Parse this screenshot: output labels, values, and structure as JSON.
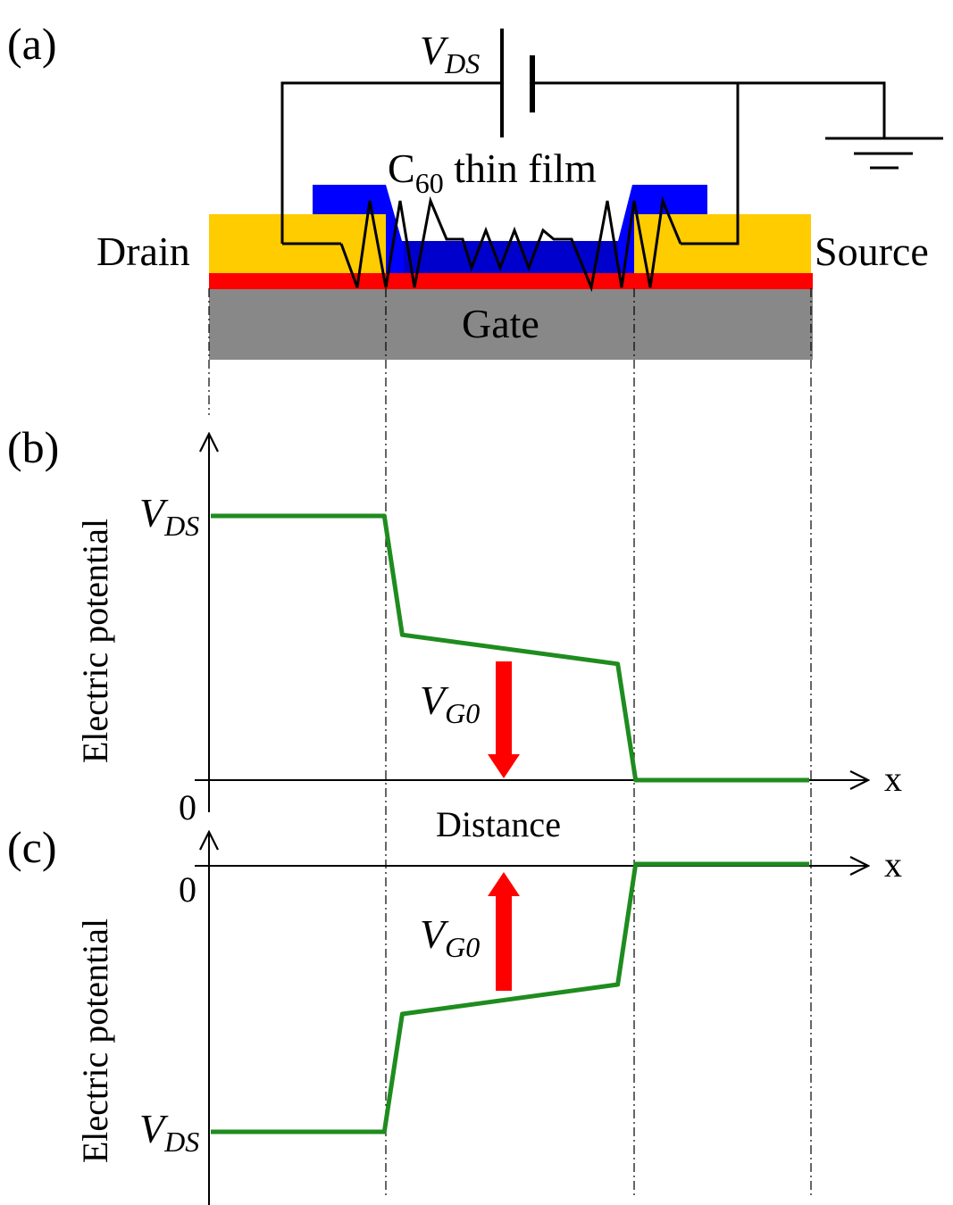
{
  "panels": {
    "a": {
      "label": "(a)"
    },
    "b": {
      "label": "(b)"
    },
    "c": {
      "label": "(c)"
    }
  },
  "device": {
    "vds_main": "V",
    "vds_sub": "DS",
    "film_main": "C",
    "film_sub": "60",
    "film_rest": " thin film",
    "drain": "Drain",
    "source": "Source",
    "gate": "Gate"
  },
  "plot_b": {
    "ylabel": "Electric potential",
    "ytick_main": "V",
    "ytick_sub": "DS",
    "zero": "0",
    "xlabel": "x",
    "xtitle": "Distance",
    "arrow_main": "V",
    "arrow_sub": "G0"
  },
  "plot_c": {
    "ylabel": "Electric potential",
    "ytick_main": "V",
    "ytick_sub": "DS",
    "zero": "0",
    "xlabel": "x",
    "arrow_main": "V",
    "arrow_sub": "G0"
  },
  "colors": {
    "electrode": "#FFCC00",
    "film": "#0000FF",
    "channel": "#0000CC",
    "dielectric": "#FF0000",
    "gate": "#888888",
    "curve": "#1E8C1E",
    "arrow": "#FF0000"
  },
  "chart_data": [
    {
      "type": "line",
      "panel": "b",
      "title": "",
      "xlabel": "Distance",
      "ylabel": "Electric potential",
      "series": [
        {
          "x": [
            0,
            0.29,
            0.32,
            0.68,
            0.71,
            1.0
          ],
          "y": [
            1.0,
            1.0,
            0.55,
            0.44,
            0.0,
            0.0
          ]
        }
      ]
    },
    {
      "type": "line",
      "panel": "c",
      "title": "",
      "xlabel": "",
      "ylabel": "Electric potential",
      "series": [
        {
          "x": [
            0,
            0.29,
            0.32,
            0.68,
            0.71,
            1.0
          ],
          "y": [
            -1.0,
            -1.0,
            -0.56,
            -0.45,
            0.0,
            0.0
          ]
        }
      ]
    }
  ]
}
